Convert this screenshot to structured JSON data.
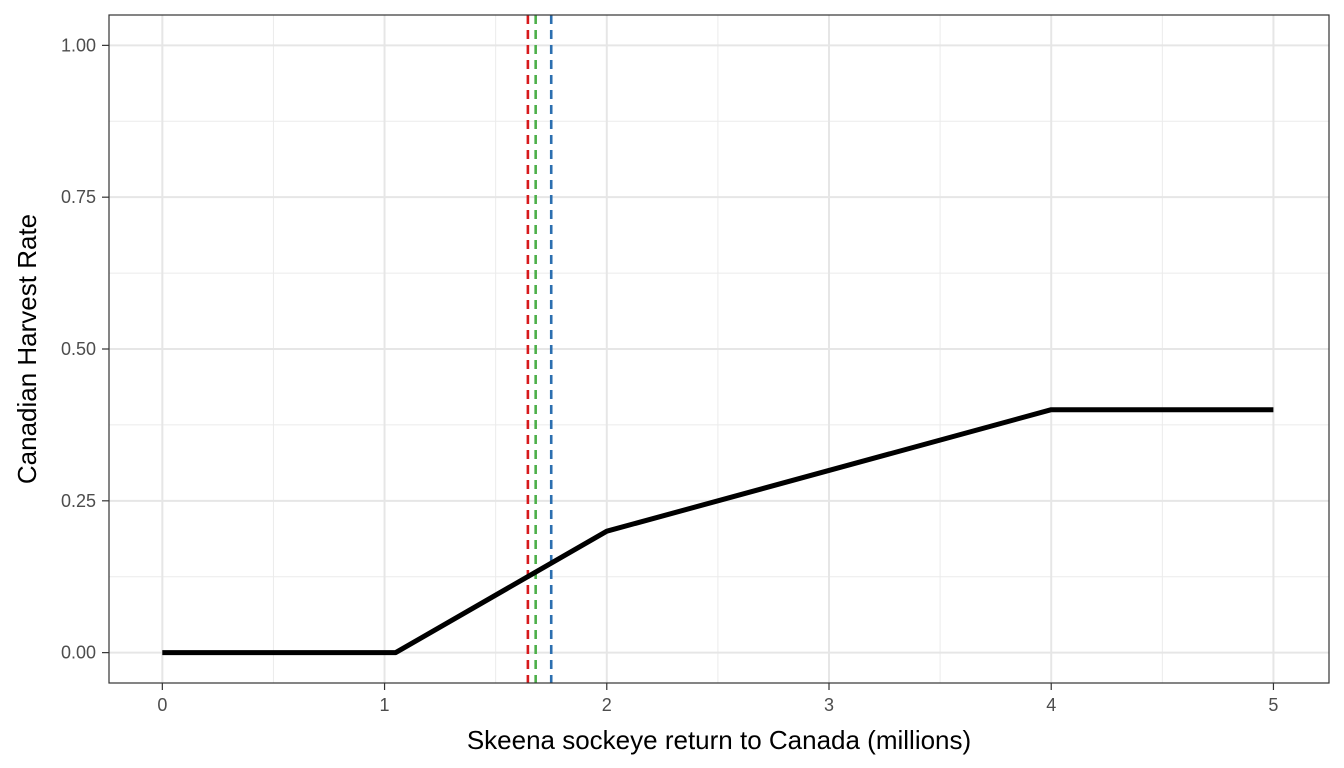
{
  "chart_data": {
    "type": "line",
    "xlabel": "Skeena sockeye return to Canada (millions)",
    "ylabel": "Canadian Harvest Rate",
    "xlim": [
      -0.24,
      5.25
    ],
    "ylim": [
      -0.05,
      1.05
    ],
    "x_ticks": [
      0,
      1,
      2,
      3,
      4,
      5
    ],
    "y_ticks": [
      0.0,
      0.25,
      0.5,
      0.75,
      1.0
    ],
    "y_tick_labels": [
      "0.00",
      "0.25",
      "0.50",
      "0.75",
      "1.00"
    ],
    "x_tick_labels": [
      "0",
      "1",
      "2",
      "3",
      "4",
      "5"
    ],
    "grid": true,
    "series": [
      {
        "color": "#000000",
        "x": [
          0,
          1.05,
          2.0,
          4.0,
          5.0
        ],
        "y": [
          0.0,
          0.0,
          0.2,
          0.4,
          0.4
        ]
      }
    ],
    "vlines": [
      {
        "x": 1.645,
        "color": "#d7191c",
        "style": "dashed"
      },
      {
        "x": 1.68,
        "color": "#4daf4a",
        "style": "dashed"
      },
      {
        "x": 1.75,
        "color": "#2c6fb0",
        "style": "dashed"
      }
    ]
  }
}
